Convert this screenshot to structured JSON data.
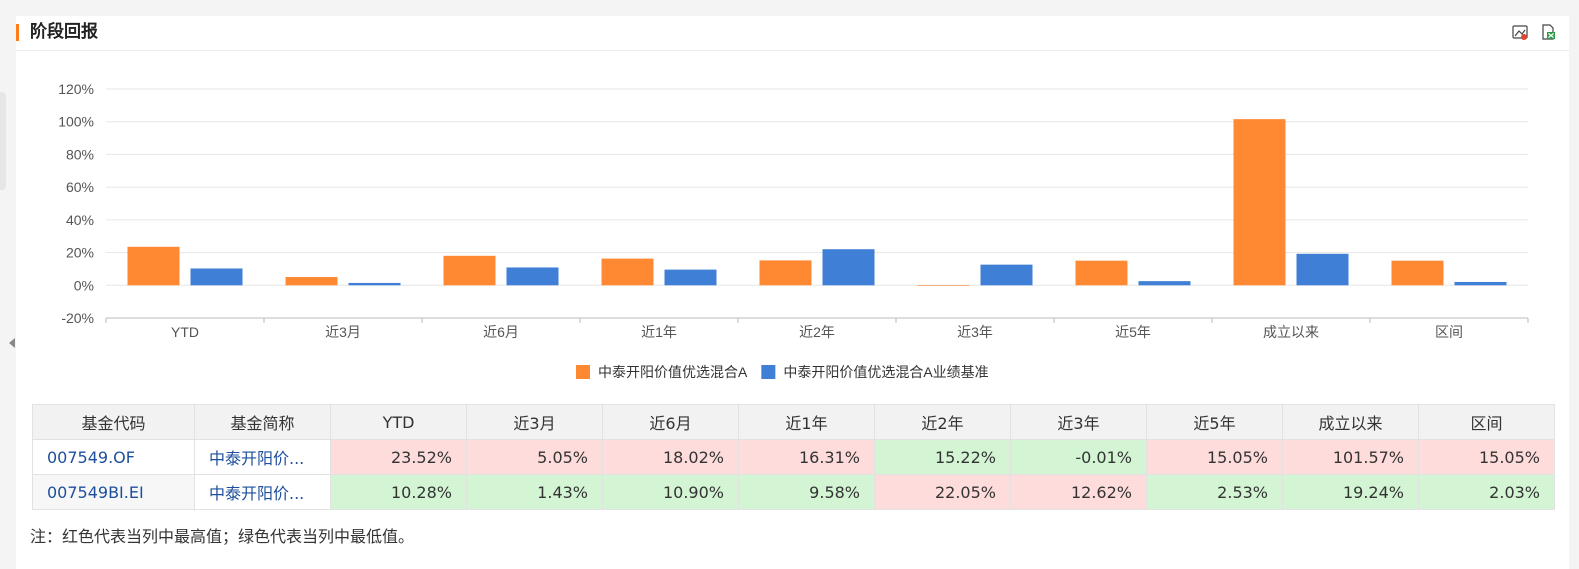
{
  "header": {
    "title": "阶段回报"
  },
  "toolbar": {
    "icons": [
      "image-export-icon",
      "excel-export-icon"
    ]
  },
  "colors": {
    "fund": "#ff8833",
    "benchmark": "#3f7fd6",
    "high": "#ffdcdc",
    "low": "#d4f5d4",
    "accent": "#ff7d1a"
  },
  "chart_data": {
    "type": "bar",
    "categories": [
      "YTD",
      "近3月",
      "近6月",
      "近1年",
      "近2年",
      "近3年",
      "近5年",
      "成立以来",
      "区间"
    ],
    "series": [
      {
        "name": "中泰开阳价值优选混合A",
        "values": [
          23.52,
          5.05,
          18.02,
          16.31,
          15.22,
          -0.01,
          15.05,
          101.57,
          15.05
        ]
      },
      {
        "name": "中泰开阳价值优选混合A业绩基准",
        "values": [
          10.28,
          1.43,
          10.9,
          9.58,
          22.05,
          12.62,
          2.53,
          19.24,
          2.03
        ]
      }
    ],
    "ylim": [
      -20,
      120
    ],
    "yticks": [
      -20,
      0,
      20,
      40,
      60,
      80,
      100,
      120
    ],
    "ytick_labels": [
      "-20%",
      "0%",
      "20%",
      "40%",
      "60%",
      "80%",
      "100%",
      "120%"
    ],
    "grid": true,
    "legend_position": "bottom-center"
  },
  "table": {
    "headers": [
      "基金代码",
      "基金简称",
      "YTD",
      "近3月",
      "近6月",
      "近1年",
      "近2年",
      "近3年",
      "近5年",
      "成立以来",
      "区间"
    ],
    "rows": [
      {
        "code": "007549.OF",
        "name": "中泰开阳价...",
        "values": [
          "23.52%",
          "5.05%",
          "18.02%",
          "16.31%",
          "15.22%",
          "-0.01%",
          "15.05%",
          "101.57%",
          "15.05%"
        ],
        "marks": [
          "hi",
          "hi",
          "hi",
          "hi",
          "lo",
          "lo",
          "hi",
          "hi",
          "hi"
        ]
      },
      {
        "code": "007549BI.EI",
        "name": "中泰开阳价...",
        "values": [
          "10.28%",
          "1.43%",
          "10.90%",
          "9.58%",
          "22.05%",
          "12.62%",
          "2.53%",
          "19.24%",
          "2.03%"
        ],
        "marks": [
          "lo",
          "lo",
          "lo",
          "lo",
          "hi",
          "hi",
          "lo",
          "lo",
          "lo"
        ]
      }
    ]
  },
  "note": "注：红色代表当列中最高值；绿色代表当列中最低值。"
}
